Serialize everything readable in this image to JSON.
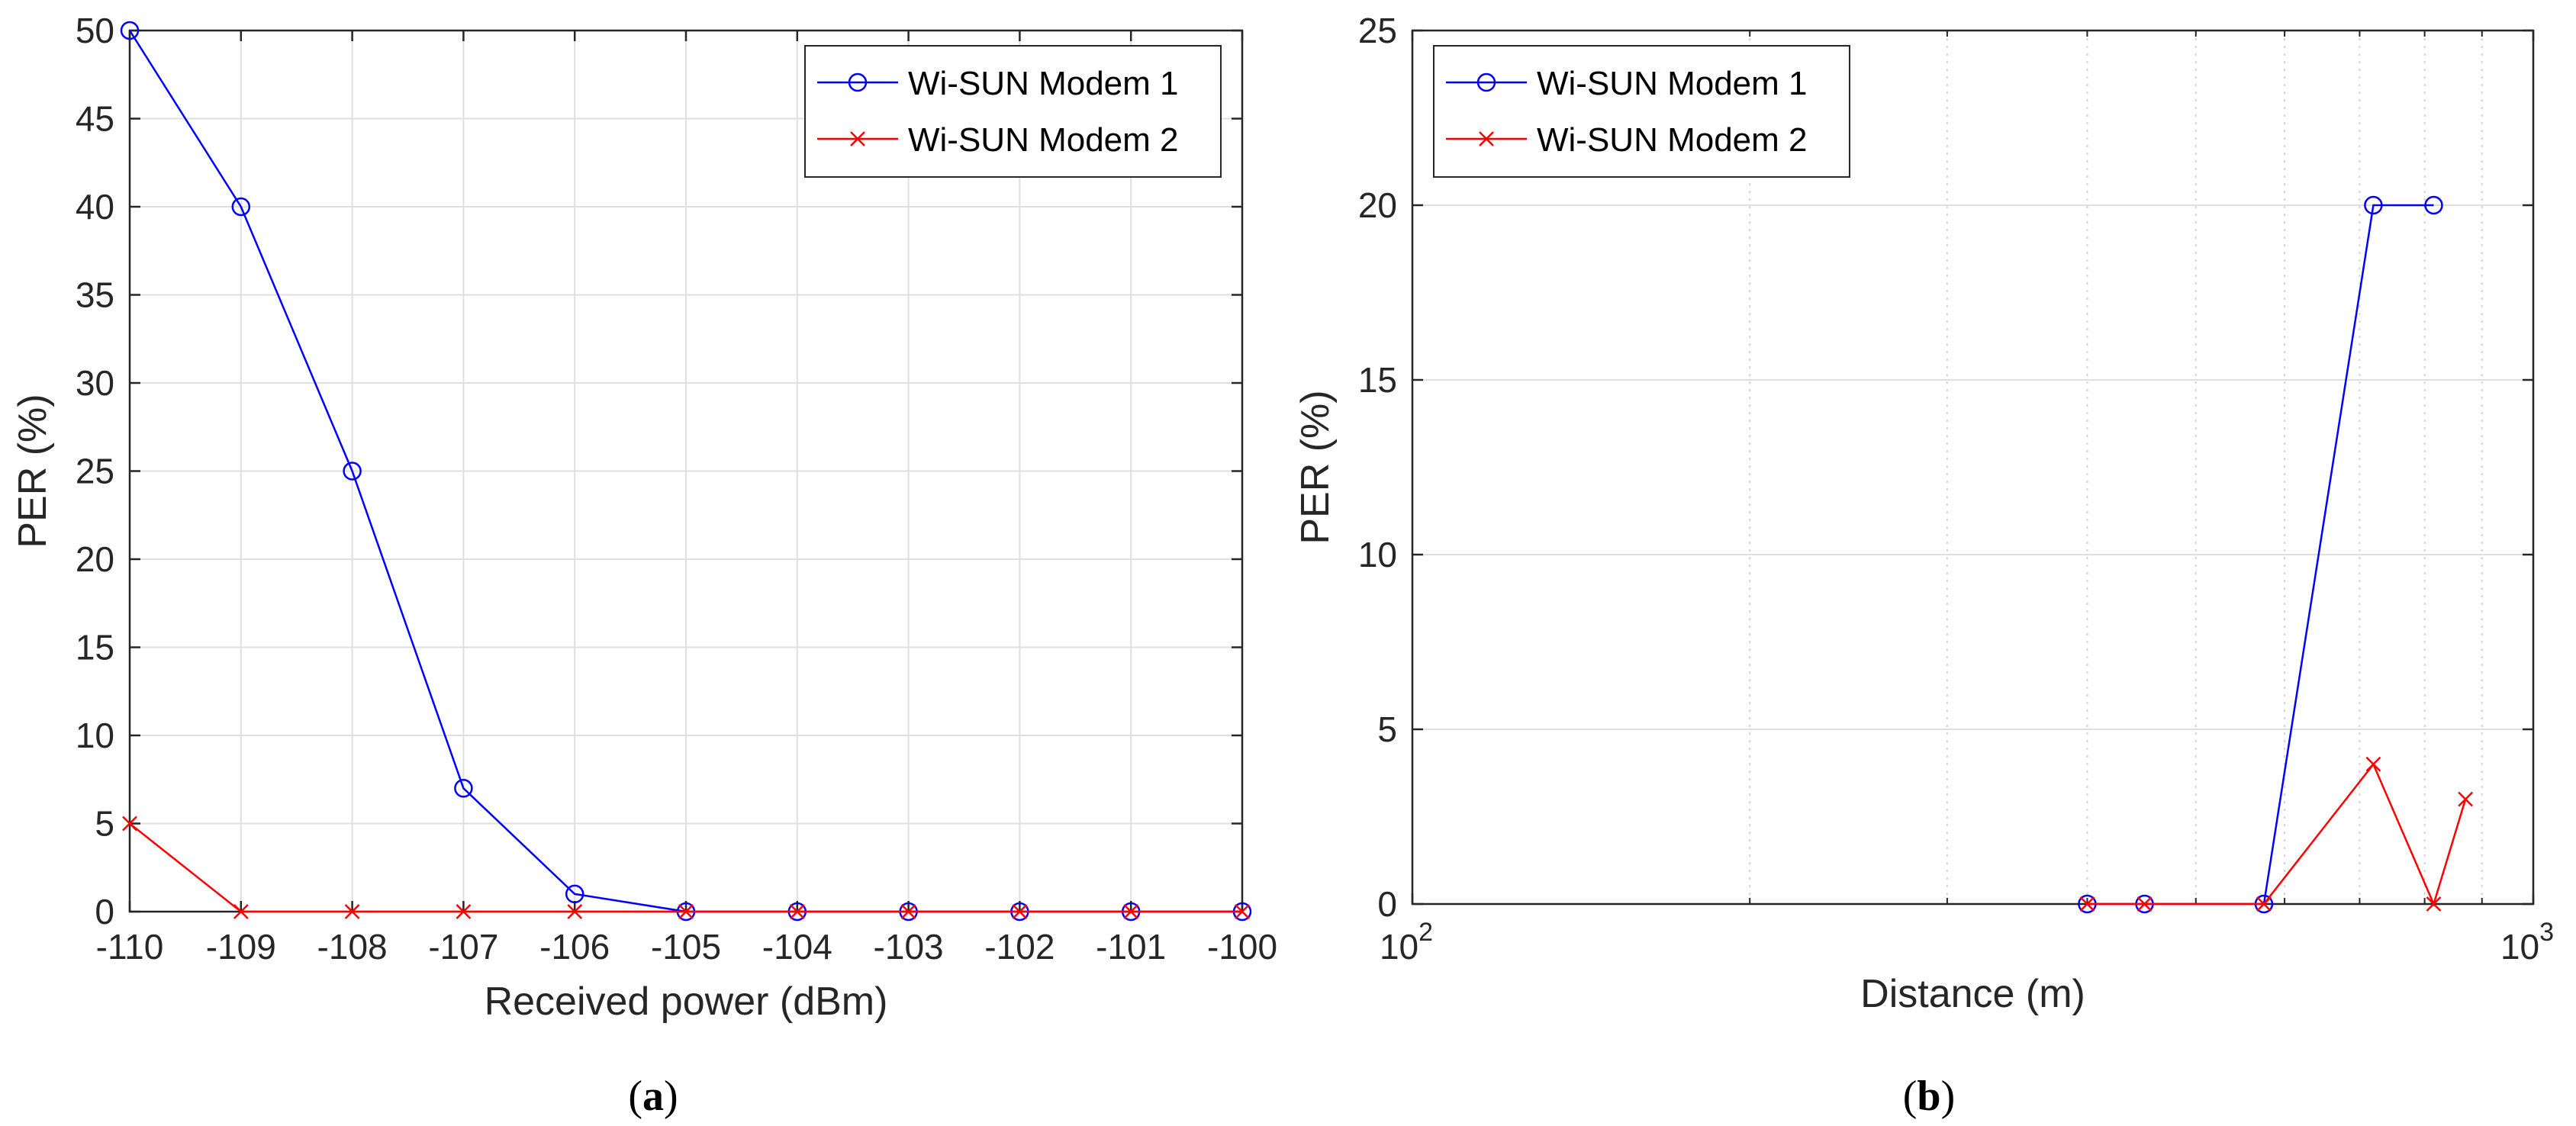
{
  "chart_data": [
    {
      "type": "line",
      "panel_label": {
        "open": "(",
        "letter": "a",
        "close": ")"
      },
      "xlabel": "Received power (dBm)",
      "ylabel": "PER (%)",
      "xlim": [
        -110,
        -100
      ],
      "ylim": [
        0,
        50
      ],
      "xticks": [
        -110,
        -109,
        -108,
        -107,
        -106,
        -105,
        -104,
        -103,
        -102,
        -101,
        -100
      ],
      "xtick_labels": [
        "-110",
        "-109",
        "-108",
        "-107",
        "-106",
        "-105",
        "-104",
        "-103",
        "-102",
        "-101",
        "-100"
      ],
      "yticks": [
        0,
        5,
        10,
        15,
        20,
        25,
        30,
        35,
        40,
        45,
        50
      ],
      "ytick_labels": [
        "0",
        "5",
        "10",
        "15",
        "20",
        "25",
        "30",
        "35",
        "40",
        "45",
        "50"
      ],
      "x_scale": "linear",
      "grid": true,
      "legend_position": "top-right",
      "series": [
        {
          "name": "Wi-SUN Modem 1",
          "color": "#0000ff",
          "marker": "circle",
          "x": [
            -110,
            -109,
            -108,
            -107,
            -106,
            -105,
            -104,
            -103,
            -102,
            -101,
            -100
          ],
          "y": [
            50,
            40,
            25,
            7,
            1,
            0,
            0,
            0,
            0,
            0,
            0
          ]
        },
        {
          "name": "Wi-SUN Modem 2",
          "color": "#ff0000",
          "marker": "cross",
          "x": [
            -110,
            -109,
            -108,
            -107,
            -106,
            -105,
            -104,
            -103,
            -102,
            -101,
            -100
          ],
          "y": [
            5,
            0,
            0,
            0,
            0,
            0,
            0,
            0,
            0,
            0,
            0
          ]
        }
      ]
    },
    {
      "type": "line",
      "panel_label": {
        "open": "(",
        "letter": "b",
        "close": ")"
      },
      "xlabel": "Distance (m)",
      "ylabel": "PER (%)",
      "xlim": [
        100,
        1000
      ],
      "ylim": [
        0,
        25
      ],
      "xticks": [
        100,
        1000
      ],
      "xtick_labels": [
        {
          "base": "10",
          "exp": "2"
        },
        {
          "base": "10",
          "exp": "3"
        }
      ],
      "yticks": [
        0,
        5,
        10,
        15,
        20,
        25
      ],
      "ytick_labels": [
        "0",
        "5",
        "10",
        "15",
        "20",
        "25"
      ],
      "x_scale": "log",
      "grid": true,
      "legend_position": "top-left",
      "series": [
        {
          "name": "Wi-SUN Modem 1",
          "color": "#0000ff",
          "marker": "circle",
          "x": [
            400,
            450,
            575,
            720,
            815
          ],
          "y": [
            0,
            0,
            0,
            20,
            20
          ]
        },
        {
          "name": "Wi-SUN Modem 2",
          "color": "#ff0000",
          "marker": "cross",
          "segments": [
            {
              "x": [
                400,
                450,
                575,
                720,
                815,
                870
              ],
              "y": [
                0,
                0,
                0,
                4,
                0,
                3
              ]
            }
          ]
        }
      ]
    }
  ]
}
